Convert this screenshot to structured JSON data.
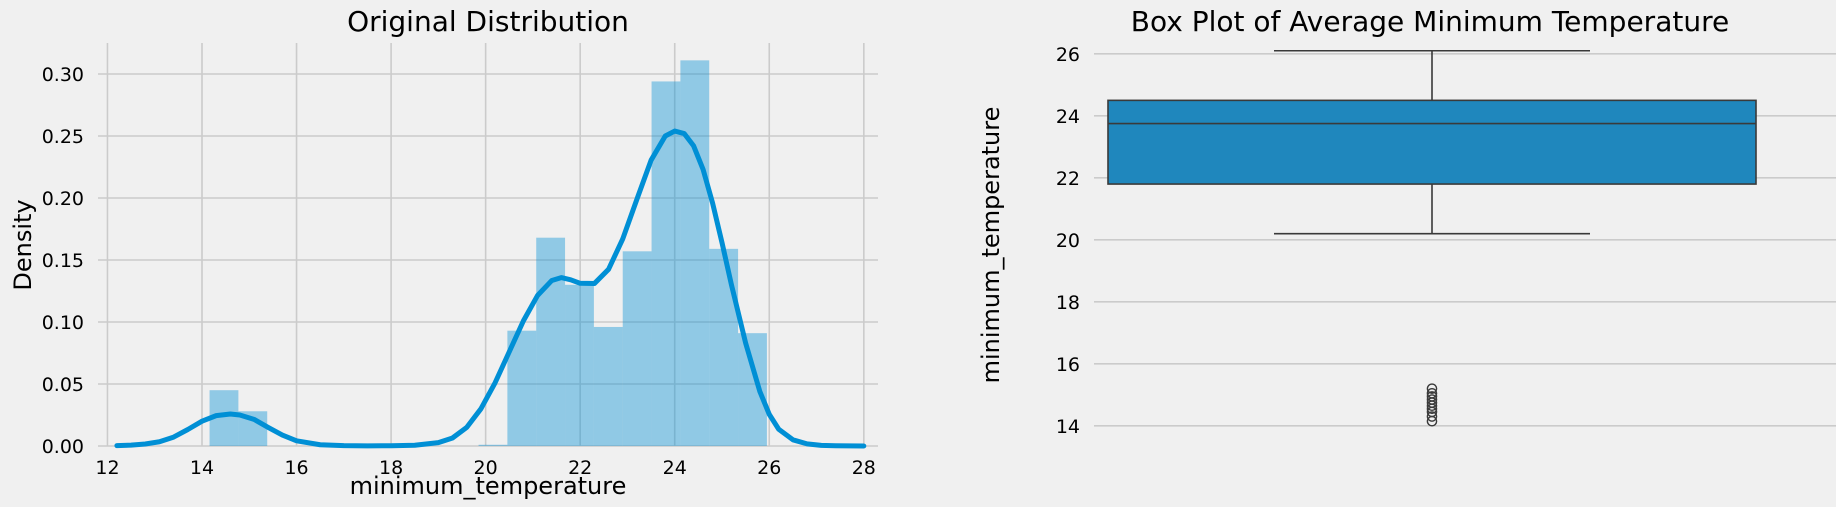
{
  "colors": {
    "background": "#f0f0f0",
    "grid": "#cbcbcb",
    "kde": "#008fd5",
    "hist": "#008fd5",
    "box": "#1f87bd",
    "box_edge": "#3a3a3a"
  },
  "chart_data": [
    {
      "type": "histogram",
      "title": "Original Distribution",
      "xlabel": "minimum_temperature",
      "ylabel": "Density",
      "xlim": [
        11.8,
        28.3
      ],
      "ylim": [
        0,
        0.325
      ],
      "xticks": [
        12,
        14,
        16,
        18,
        20,
        22,
        24,
        26,
        28
      ],
      "yticks": [
        0.0,
        0.05,
        0.1,
        0.15,
        0.2,
        0.25,
        0.3
      ],
      "ytick_labels": [
        "0.00",
        "0.05",
        "0.10",
        "0.15",
        "0.20",
        "0.25",
        "0.30"
      ],
      "grid": true,
      "bins": [
        {
          "x0": 14.16,
          "x1": 14.77,
          "density": 0.045
        },
        {
          "x0": 14.77,
          "x1": 15.38,
          "density": 0.028
        },
        {
          "x0": 19.85,
          "x1": 20.46,
          "density": 0.001
        },
        {
          "x0": 20.46,
          "x1": 21.07,
          "density": 0.093
        },
        {
          "x0": 21.07,
          "x1": 21.68,
          "density": 0.168
        },
        {
          "x0": 21.68,
          "x1": 22.29,
          "density": 0.13
        },
        {
          "x0": 22.29,
          "x1": 22.9,
          "density": 0.096
        },
        {
          "x0": 22.9,
          "x1": 23.51,
          "density": 0.157
        },
        {
          "x0": 23.51,
          "x1": 24.12,
          "density": 0.294
        },
        {
          "x0": 24.12,
          "x1": 24.73,
          "density": 0.311
        },
        {
          "x0": 24.73,
          "x1": 25.34,
          "density": 0.159
        },
        {
          "x0": 25.34,
          "x1": 25.95,
          "density": 0.091
        }
      ],
      "kde": {
        "x": [
          12.2,
          12.5,
          12.8,
          13.1,
          13.4,
          13.7,
          14.0,
          14.3,
          14.6,
          14.8,
          15.1,
          15.4,
          15.7,
          16.0,
          16.5,
          17.0,
          17.5,
          18.0,
          18.5,
          19.0,
          19.3,
          19.6,
          19.9,
          20.2,
          20.5,
          20.8,
          21.1,
          21.4,
          21.6,
          21.8,
          22.0,
          22.3,
          22.6,
          22.9,
          23.2,
          23.5,
          23.8,
          24.0,
          24.2,
          24.4,
          24.6,
          24.8,
          25.0,
          25.2,
          25.5,
          25.8,
          26.0,
          26.2,
          26.5,
          26.8,
          27.1,
          27.4,
          27.7,
          28.0
        ],
        "y": [
          0.0003,
          0.0007,
          0.0016,
          0.0034,
          0.0072,
          0.0133,
          0.02,
          0.0245,
          0.0258,
          0.025,
          0.0215,
          0.015,
          0.0088,
          0.0042,
          0.001,
          0.0003,
          0.0001,
          0.0002,
          0.0006,
          0.0027,
          0.0065,
          0.015,
          0.03,
          0.051,
          0.076,
          0.101,
          0.1215,
          0.1335,
          0.1358,
          0.134,
          0.1312,
          0.131,
          0.1425,
          0.167,
          0.199,
          0.2305,
          0.25,
          0.254,
          0.252,
          0.242,
          0.223,
          0.196,
          0.164,
          0.13,
          0.083,
          0.044,
          0.0255,
          0.0135,
          0.005,
          0.0017,
          0.0005,
          0.0002,
          0.0001,
          0.0
        ]
      }
    },
    {
      "type": "box",
      "title": "Box Plot of Average Minimum Temperature",
      "ylabel": "minimum_temperature",
      "ylim": [
        13.35,
        26.35
      ],
      "yticks": [
        14,
        16,
        18,
        20,
        22,
        24,
        26
      ],
      "grid": true,
      "whisker_low": 20.2,
      "q1": 21.8,
      "median": 23.75,
      "q3": 24.5,
      "whisker_high": 26.1,
      "outliers": [
        14.15,
        14.3,
        14.45,
        14.55,
        14.65,
        14.75,
        14.85,
        14.95,
        15.05,
        15.2
      ]
    }
  ]
}
